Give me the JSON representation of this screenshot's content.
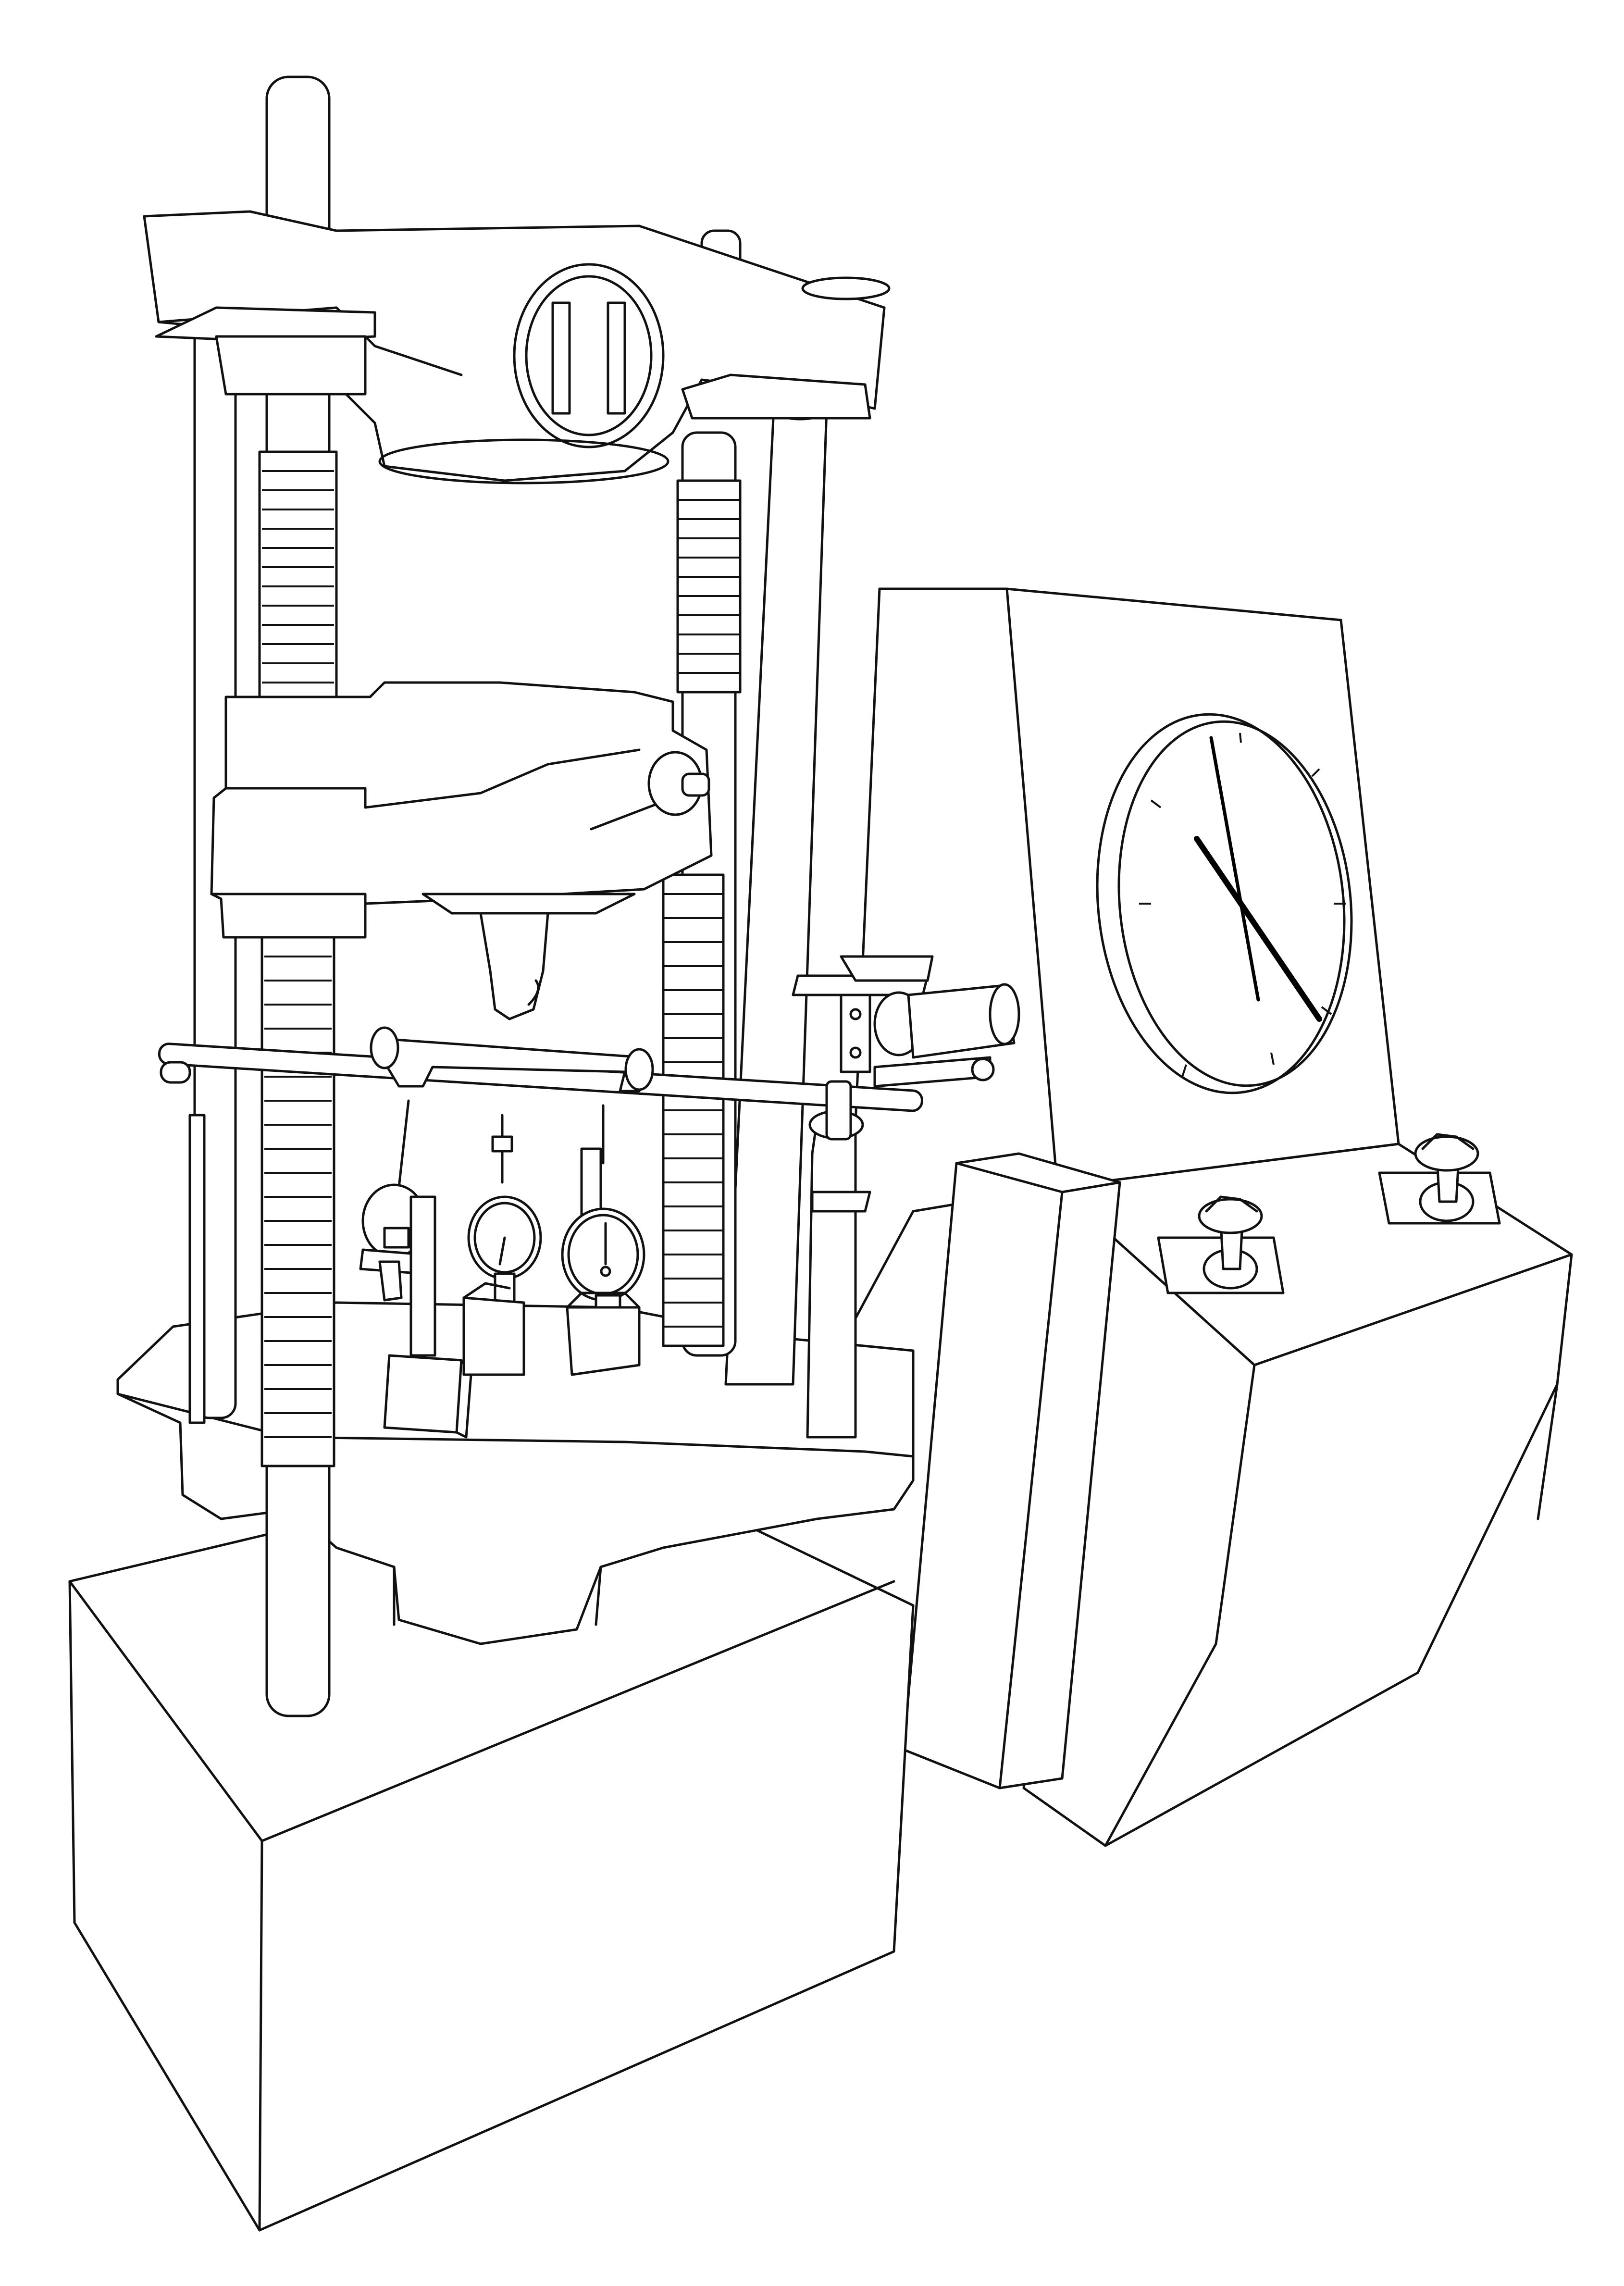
{
  "figure": {
    "style": "black line-art on white",
    "colors": {
      "line": "#111111",
      "background": "#ffffff"
    },
    "subject_parts": [
      "frame-columns",
      "lead-screws",
      "top-crosshead",
      "moving-crosshead",
      "lower-table",
      "base-block",
      "dial-gauges",
      "control-cabinet",
      "load-dial",
      "control-knobs",
      "pendulum-box"
    ]
  }
}
